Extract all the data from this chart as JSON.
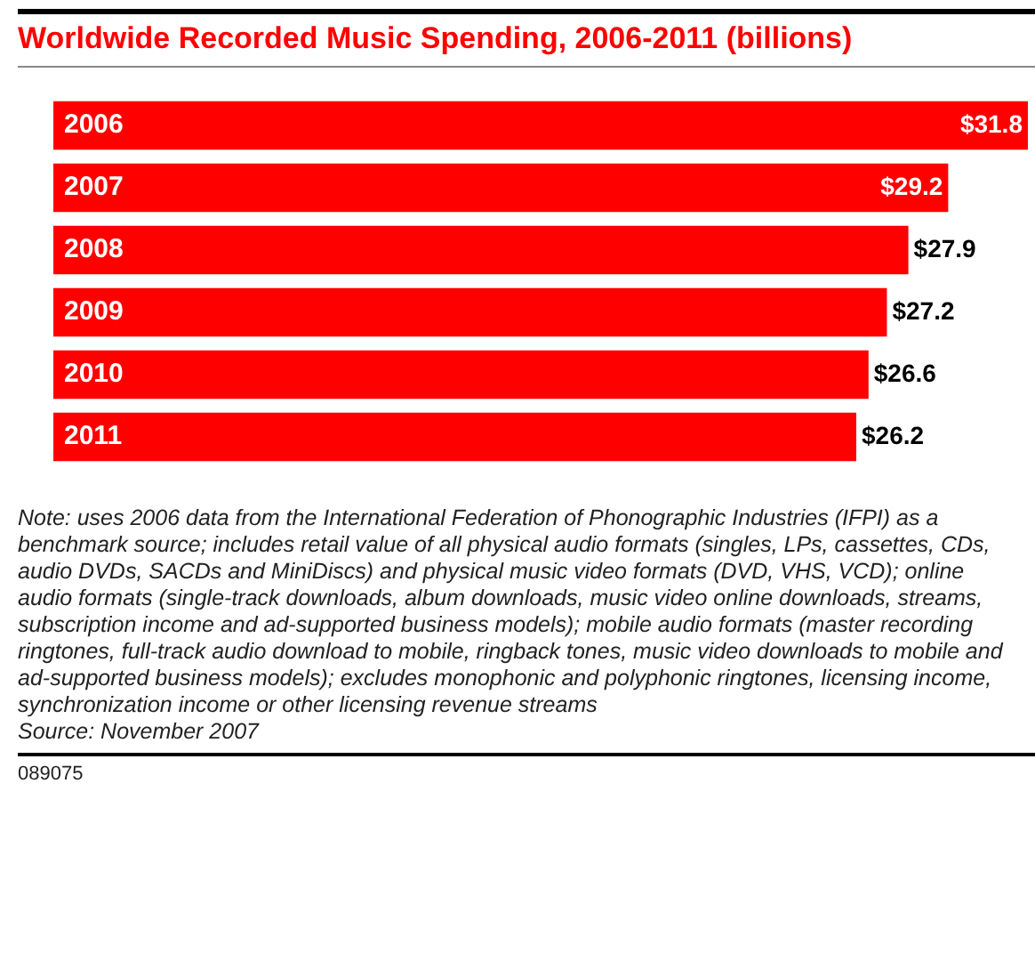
{
  "chart_data": {
    "type": "bar",
    "orientation": "horizontal",
    "title": "Worldwide Recorded Music Spending, 2006-2011 (billions)",
    "categories": [
      "2006",
      "2007",
      "2008",
      "2009",
      "2010",
      "2011"
    ],
    "values": [
      31.8,
      29.2,
      27.9,
      27.2,
      26.6,
      26.2
    ],
    "value_labels": [
      "$31.8",
      "$29.2",
      "$27.9",
      "$27.2",
      "$26.6",
      "$26.2"
    ],
    "color": "#ff0000",
    "tick_labels": "y",
    "annotations": [
      "Note: uses 2006 data from the International Federation of Phonographic Industries (IFPI) as a benchmark source; includes retail value of all physical audio formats (singles, LPs, cassettes, CDs, audio DVDs, SACDs and MiniDiscs) and physical music video formats (DVD, VHS, VCD); online audio formats (single-track downloads, album downloads, music video online downloads, streams, subscription income and ad-supported business models); mobile audio formats (master recording ringtones, full-track audio download to mobile, ringback tones, music video downloads to mobile and ad-supported business models); excludes monophonic and polyphonic ringtones, licensing income, synchronization income or other licensing revenue streams",
      "Source: November 2007",
      "089075"
    ]
  }
}
